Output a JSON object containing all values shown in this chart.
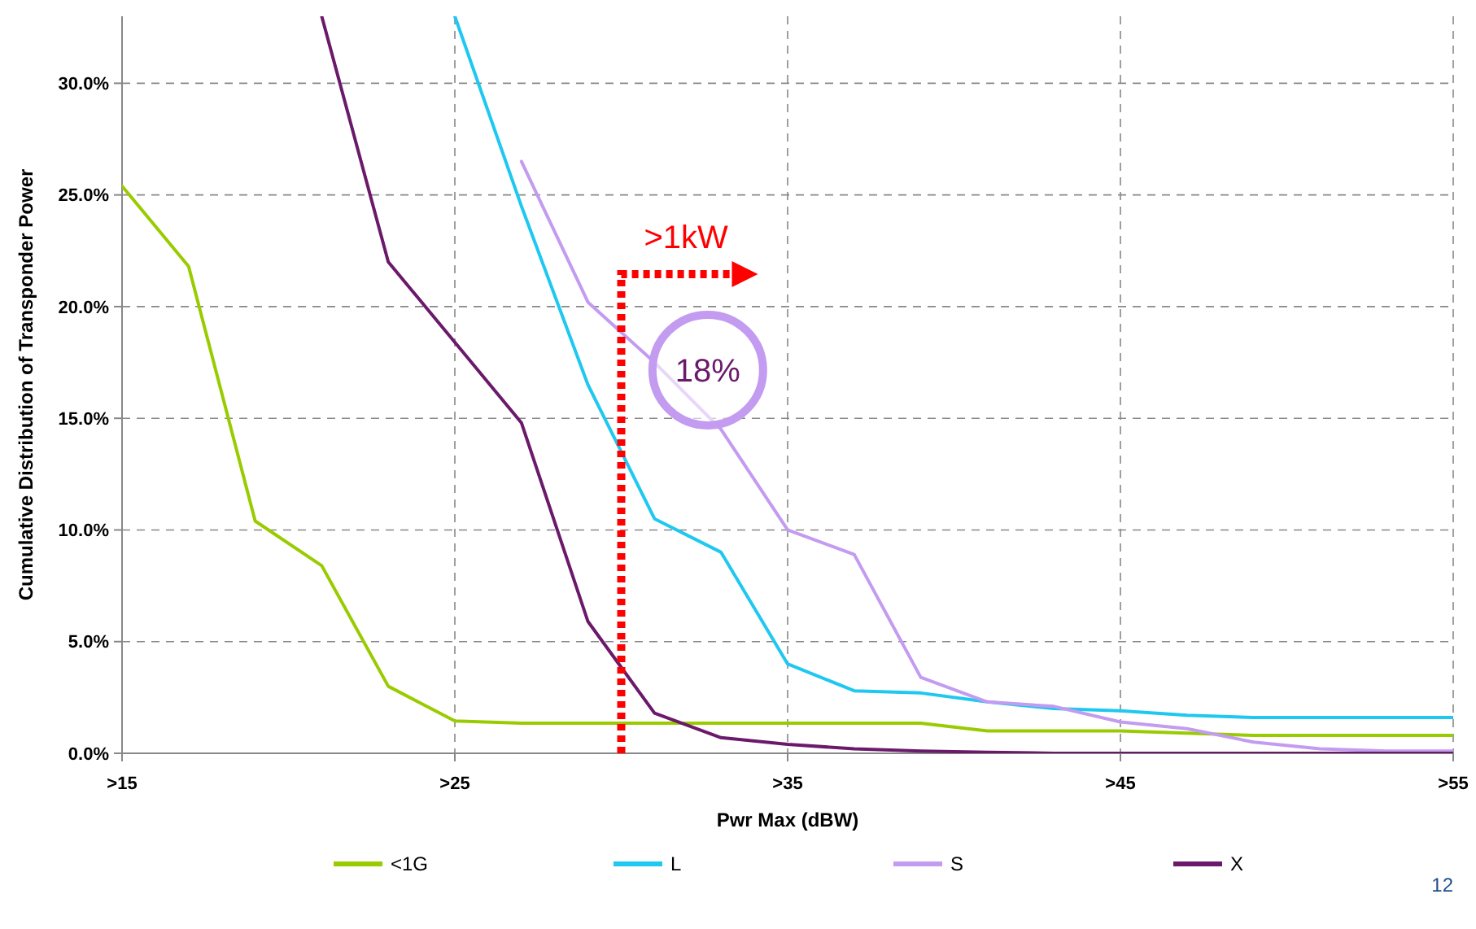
{
  "chart_data": {
    "type": "line",
    "xlabel": "Pwr Max (dBW)",
    "ylabel": "Cumulative Distribution of Transponder Power",
    "categories": [
      ">15",
      null,
      null,
      null,
      null,
      ">25",
      null,
      null,
      null,
      null,
      ">35",
      null,
      null,
      null,
      null,
      ">45",
      null,
      null,
      null,
      null,
      ">55"
    ],
    "ylim": [
      0,
      33
    ],
    "yticks": [
      {
        "value": 0,
        "label": "0.0%"
      },
      {
        "value": 5,
        "label": "5.0%"
      },
      {
        "value": 10,
        "label": "10.0%"
      },
      {
        "value": 15,
        "label": "15.0%"
      },
      {
        "value": 20,
        "label": "20.0%"
      },
      {
        "value": 25,
        "label": "25.0%"
      },
      {
        "value": 30,
        "label": "30.0%"
      }
    ],
    "grid": true,
    "legend": "bottom",
    "marker": "none",
    "line_style": "solid",
    "series": [
      {
        "name": "<1G",
        "color": "#99cc00",
        "values": [
          25.4,
          21.8,
          10.4,
          8.4,
          3.0,
          1.45,
          1.35,
          1.35,
          1.35,
          1.35,
          1.35,
          1.35,
          1.35,
          1.0,
          1.0,
          1.0,
          0.9,
          0.8,
          0.8,
          0.8,
          0.8
        ]
      },
      {
        "name": "L",
        "color": "#1ec8f0",
        "values": [
          null,
          null,
          null,
          null,
          null,
          33,
          24.5,
          16.5,
          10.5,
          9.0,
          4.0,
          2.8,
          2.7,
          2.3,
          2.0,
          1.9,
          1.7,
          1.6,
          1.6,
          1.6,
          1.6
        ]
      },
      {
        "name": "S",
        "color": "#c39bf0",
        "values": [
          null,
          null,
          null,
          null,
          null,
          null,
          26.5,
          20.2,
          17.5,
          14.5,
          10.0,
          8.9,
          3.4,
          2.3,
          2.1,
          1.4,
          1.1,
          0.5,
          0.2,
          0.1,
          0.1
        ]
      },
      {
        "name": "X",
        "color": "#6b1a6b",
        "values": [
          null,
          null,
          null,
          33,
          22.0,
          18.4,
          14.8,
          5.9,
          1.8,
          0.7,
          0.4,
          0.2,
          0.1,
          0.05,
          0,
          0,
          0,
          0,
          0,
          0,
          0
        ]
      }
    ],
    "annotations": [
      ">1kW",
      "18%",
      "12"
    ]
  }
}
